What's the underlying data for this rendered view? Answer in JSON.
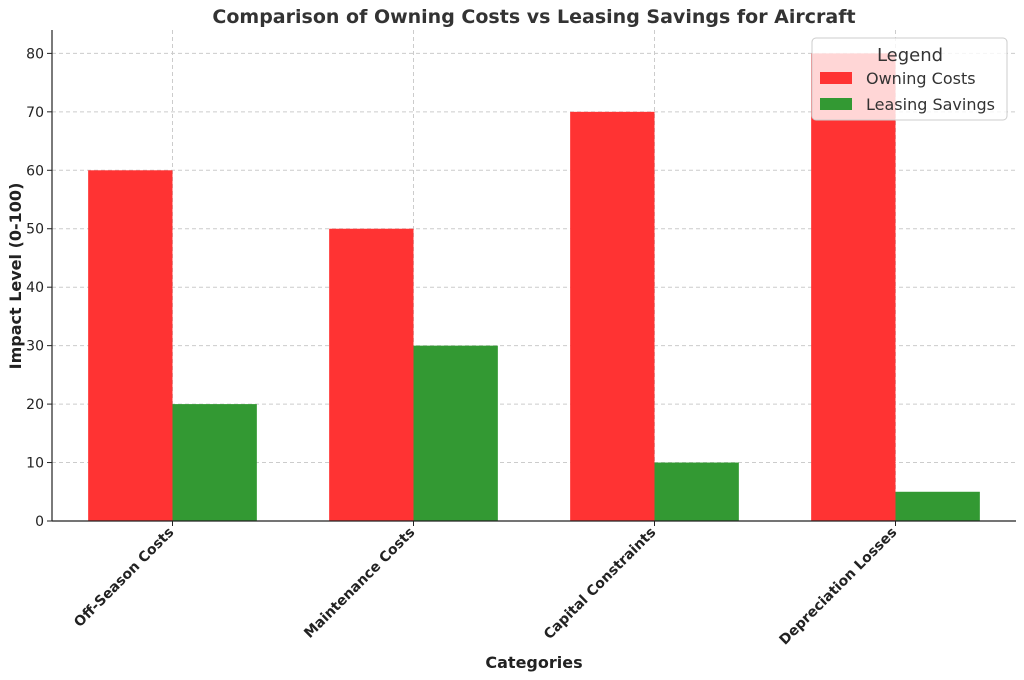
{
  "chart_data": {
    "type": "bar",
    "title": "Comparison of Owning Costs vs Leasing Savings for Aircraft",
    "xlabel": "Categories",
    "ylabel": "Impact Level (0-100)",
    "categories": [
      "Off-Season Costs",
      "Maintenance Costs",
      "Capital Constraints",
      "Depreciation Losses"
    ],
    "series": [
      {
        "name": "Owning Costs",
        "values": [
          60,
          50,
          70,
          80
        ],
        "color": "#ff3333"
      },
      {
        "name": "Leasing Savings",
        "values": [
          20,
          30,
          10,
          5
        ],
        "color": "#339933"
      }
    ],
    "ylim": [
      0,
      84
    ],
    "yticks": [
      0,
      10,
      20,
      30,
      40,
      50,
      60,
      70,
      80
    ],
    "grid": true,
    "legend": {
      "title": "Legend",
      "placement": "top-right"
    }
  }
}
